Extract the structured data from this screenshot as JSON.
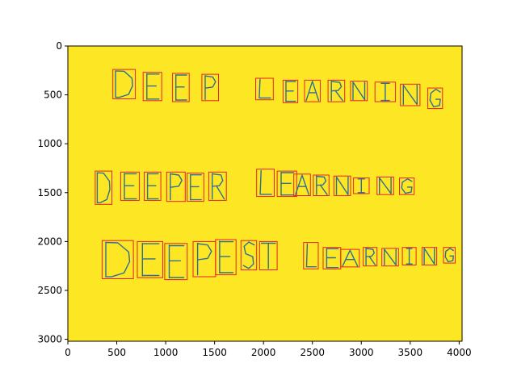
{
  "chart_data": {
    "type": "image",
    "title": "",
    "xlabel": "",
    "ylabel": "",
    "xlim": [
      0,
      4030
    ],
    "ylim": [
      3020,
      0
    ],
    "x_ticks": [
      0,
      500,
      1000,
      1500,
      2000,
      2500,
      3000,
      3500,
      4000
    ],
    "y_ticks": [
      0,
      500,
      1000,
      1500,
      2000,
      2500,
      3000
    ],
    "background_color": "#fde725",
    "box_color": "#e8202a",
    "stroke_color": "#2f6f8f",
    "rows": [
      {
        "name": "",
        "boxes": [
          {
            "letter": "D",
            "x0": 460,
            "y0": 240,
            "x1": 690,
            "y1": 540
          },
          {
            "letter": "E",
            "x0": 770,
            "y0": 270,
            "x1": 960,
            "y1": 560
          },
          {
            "letter": "E",
            "x0": 1070,
            "y0": 280,
            "x1": 1240,
            "y1": 570
          },
          {
            "letter": "P",
            "x0": 1370,
            "y0": 290,
            "x1": 1540,
            "y1": 560
          },
          {
            "letter": "L",
            "x0": 1920,
            "y0": 330,
            "x1": 2100,
            "y1": 550
          },
          {
            "letter": "E",
            "x0": 2200,
            "y0": 350,
            "x1": 2350,
            "y1": 580
          },
          {
            "letter": "A",
            "x0": 2420,
            "y0": 350,
            "x1": 2580,
            "y1": 570
          },
          {
            "letter": "R",
            "x0": 2660,
            "y0": 350,
            "x1": 2830,
            "y1": 570
          },
          {
            "letter": "N",
            "x0": 2890,
            "y0": 360,
            "x1": 3060,
            "y1": 560
          },
          {
            "letter": "I",
            "x0": 3140,
            "y0": 370,
            "x1": 3350,
            "y1": 570
          },
          {
            "letter": "N",
            "x0": 3400,
            "y0": 390,
            "x1": 3600,
            "y1": 610
          },
          {
            "letter": "G",
            "x0": 3680,
            "y0": 430,
            "x1": 3830,
            "y1": 640
          }
        ]
      },
      {
        "name": "",
        "boxes": [
          {
            "letter": "D",
            "x0": 280,
            "y0": 1280,
            "x1": 450,
            "y1": 1620
          },
          {
            "letter": "E",
            "x0": 540,
            "y0": 1290,
            "x1": 730,
            "y1": 1580
          },
          {
            "letter": "E",
            "x0": 780,
            "y0": 1290,
            "x1": 950,
            "y1": 1580
          },
          {
            "letter": "P",
            "x0": 1010,
            "y0": 1290,
            "x1": 1200,
            "y1": 1590
          },
          {
            "letter": "E",
            "x0": 1220,
            "y0": 1300,
            "x1": 1390,
            "y1": 1590
          },
          {
            "letter": "R",
            "x0": 1440,
            "y0": 1290,
            "x1": 1620,
            "y1": 1580
          },
          {
            "letter": "L",
            "x0": 1930,
            "y0": 1260,
            "x1": 2110,
            "y1": 1540
          },
          {
            "letter": "E",
            "x0": 2140,
            "y0": 1280,
            "x1": 2340,
            "y1": 1540
          },
          {
            "letter": "A",
            "x0": 2310,
            "y0": 1310,
            "x1": 2480,
            "y1": 1530
          },
          {
            "letter": "R",
            "x0": 2510,
            "y0": 1320,
            "x1": 2670,
            "y1": 1530
          },
          {
            "letter": "N",
            "x0": 2720,
            "y0": 1330,
            "x1": 2890,
            "y1": 1530
          },
          {
            "letter": "I",
            "x0": 2920,
            "y0": 1350,
            "x1": 3080,
            "y1": 1510
          },
          {
            "letter": "N",
            "x0": 3160,
            "y0": 1340,
            "x1": 3330,
            "y1": 1520
          },
          {
            "letter": "G",
            "x0": 3390,
            "y0": 1350,
            "x1": 3540,
            "y1": 1520
          }
        ]
      },
      {
        "name": "",
        "boxes": [
          {
            "letter": "D",
            "x0": 350,
            "y0": 1990,
            "x1": 670,
            "y1": 2380
          },
          {
            "letter": "E",
            "x0": 710,
            "y0": 2000,
            "x1": 970,
            "y1": 2370
          },
          {
            "letter": "E",
            "x0": 990,
            "y0": 2020,
            "x1": 1220,
            "y1": 2390
          },
          {
            "letter": "P",
            "x0": 1280,
            "y0": 2000,
            "x1": 1510,
            "y1": 2360
          },
          {
            "letter": "E",
            "x0": 1510,
            "y0": 1980,
            "x1": 1720,
            "y1": 2340
          },
          {
            "letter": "S",
            "x0": 1770,
            "y0": 1990,
            "x1": 1930,
            "y1": 2290
          },
          {
            "letter": "T",
            "x0": 1960,
            "y0": 2000,
            "x1": 2140,
            "y1": 2290
          },
          {
            "letter": "L",
            "x0": 2410,
            "y0": 2010,
            "x1": 2560,
            "y1": 2280
          },
          {
            "letter": "E",
            "x0": 2610,
            "y0": 2060,
            "x1": 2790,
            "y1": 2280
          },
          {
            "letter": "A",
            "x0": 2790,
            "y0": 2080,
            "x1": 2980,
            "y1": 2260
          },
          {
            "letter": "R",
            "x0": 3020,
            "y0": 2060,
            "x1": 3160,
            "y1": 2250
          },
          {
            "letter": "N",
            "x0": 3210,
            "y0": 2070,
            "x1": 3380,
            "y1": 2250
          },
          {
            "letter": "I",
            "x0": 3420,
            "y0": 2060,
            "x1": 3560,
            "y1": 2240
          },
          {
            "letter": "N",
            "x0": 3620,
            "y0": 2060,
            "x1": 3770,
            "y1": 2240
          },
          {
            "letter": "G",
            "x0": 3840,
            "y0": 2060,
            "x1": 3960,
            "y1": 2220
          }
        ]
      }
    ]
  }
}
